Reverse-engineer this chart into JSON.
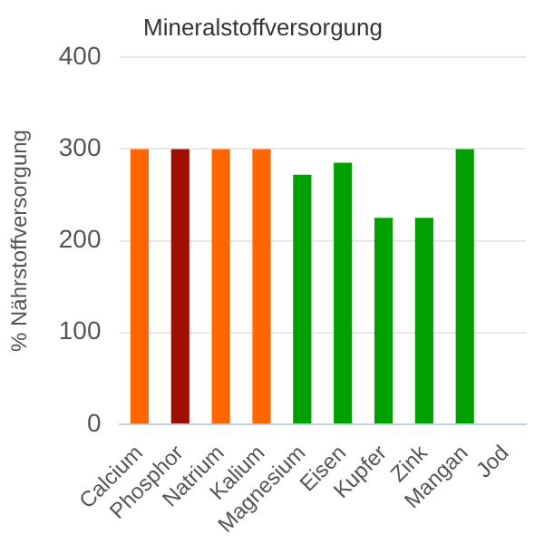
{
  "chart_data": {
    "type": "bar",
    "title": "Mineralstoffversorgung",
    "ylabel": "% Nährstoffversorgung",
    "categories": [
      "Calcium",
      "Phosphor",
      "Natrium",
      "Kalium",
      "Magnesium",
      "Eisen",
      "Kupfer",
      "Zink",
      "Mangan",
      "Jod"
    ],
    "values": [
      300,
      300,
      300,
      300,
      272,
      285,
      225,
      225,
      300,
      0
    ],
    "colors": [
      "#ff6600",
      "#a01000",
      "#ff6600",
      "#ff6600",
      "#00a000",
      "#00a000",
      "#00a000",
      "#00a000",
      "#00a000",
      "#00a000"
    ],
    "ylim": [
      0,
      400
    ],
    "yticks": [
      0,
      100,
      200,
      300,
      400
    ],
    "grid": "y",
    "legend": false
  }
}
